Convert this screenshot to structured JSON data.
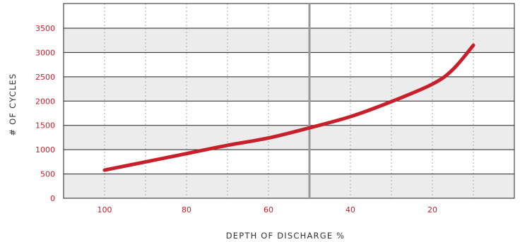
{
  "chart_data": {
    "type": "line",
    "title": "",
    "xlabel": "DEPTH OF DISCHARGE %",
    "ylabel": "# OF CYCLES",
    "xlim": [
      110,
      0
    ],
    "ylim": [
      0,
      4000
    ],
    "x_ticks": [
      100,
      80,
      60,
      40,
      20
    ],
    "y_ticks": [
      0,
      500,
      1000,
      1500,
      2000,
      2500,
      3000,
      3500
    ],
    "x_grid": [
      110,
      100,
      90,
      80,
      70,
      60,
      50,
      40,
      30,
      20,
      10,
      0
    ],
    "grid": true,
    "alternating_bands": true,
    "reference_line_x": 50,
    "series": [
      {
        "x": [
          100,
          90,
          80,
          70,
          60,
          50,
          40,
          30,
          20,
          15,
          10
        ],
        "y": [
          580,
          750,
          920,
          1090,
          1240,
          1450,
          1680,
          1990,
          2350,
          2650,
          3150
        ],
        "color": "#c8202a"
      }
    ],
    "colors": {
      "line": "#c8202a",
      "band": "#ececec",
      "grid": "#222222",
      "reference": "#999999",
      "tick_text": "#c8202a",
      "label_text": "#333333"
    }
  }
}
